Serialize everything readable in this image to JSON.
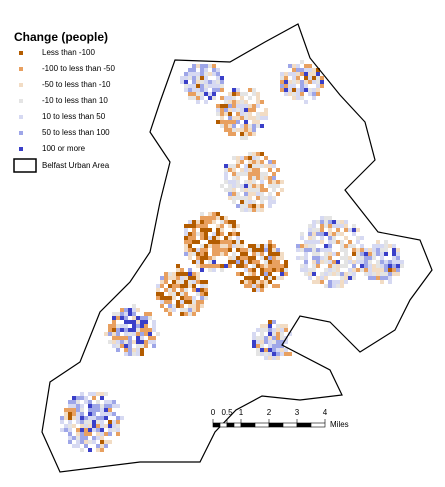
{
  "legend": {
    "title": "Change (people)",
    "items": [
      {
        "label": "Less than -100",
        "color": "#b35c00"
      },
      {
        "label": "-100 to less than -50",
        "color": "#e8a060"
      },
      {
        "label": "-50 to less than -10",
        "color": "#f2dcc4"
      },
      {
        "label": "-10 to less than 10",
        "color": "#e4e4e4"
      },
      {
        "label": "10 to less than 50",
        "color": "#d6d9f2"
      },
      {
        "label": "50 to less than 100",
        "color": "#9ea6e8"
      },
      {
        "label": "100 or more",
        "color": "#3a3fc8"
      }
    ],
    "boundary": "Belfast Urban Area"
  },
  "scale_bar": {
    "ticks": [
      0,
      0.5,
      1,
      2,
      3,
      4
    ],
    "unit": "Miles"
  }
}
